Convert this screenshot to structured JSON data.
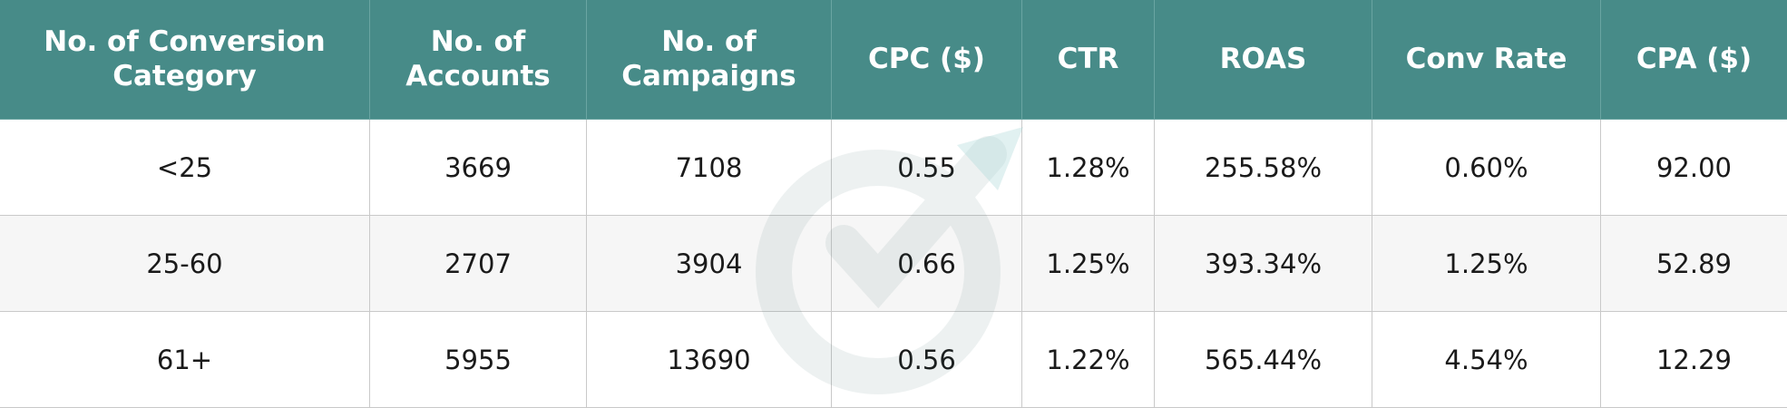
{
  "table": {
    "header": [
      "No. of Conversion Category",
      "No. of Accounts",
      "No. of Campaigns",
      "CPC ($)",
      "CTR",
      "ROAS",
      "Conv Rate",
      "CPA ($)"
    ],
    "rows": [
      [
        "<25",
        "3669",
        "7108",
        "0.55",
        "1.28%",
        "255.58%",
        "0.60%",
        "92.00"
      ],
      [
        "25-60",
        "2707",
        "3904",
        "0.66",
        "1.25%",
        "393.34%",
        "1.25%",
        "52.89"
      ],
      [
        "61+",
        "5955",
        "13690",
        "0.56",
        "1.22%",
        "565.44%",
        "4.54%",
        "12.29"
      ]
    ]
  }
}
